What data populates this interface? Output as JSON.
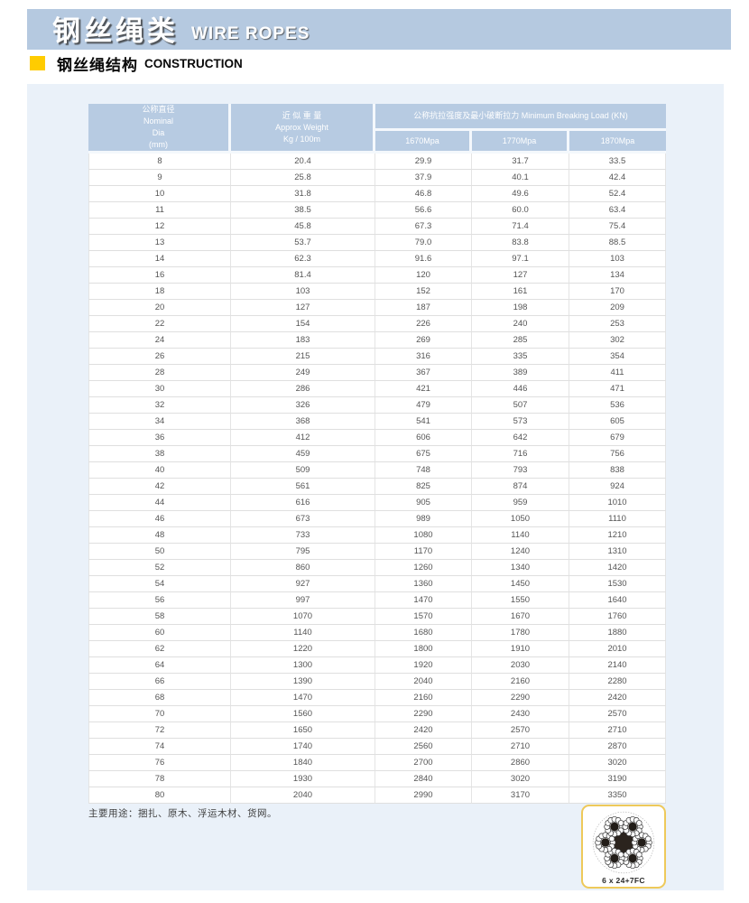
{
  "header": {
    "title_cn": "钢丝绳类",
    "title_en": "WIRE ROPES"
  },
  "section": {
    "title_cn": "钢丝绳结构",
    "title_en": "CONSTRUCTION"
  },
  "table": {
    "col_dia": {
      "cn": "公称直径",
      "en1": "Nominal",
      "en2": "Dia",
      "en3": "(mm)"
    },
    "col_weight": {
      "cn": "近 似 重 量",
      "en1": "Approx Weight",
      "en2": "Kg / 100m"
    },
    "col_group": "公称抗拉强度及最小破断拉力 Minimum Breaking Load (KN)",
    "subcols": [
      "1670Mpa",
      "1770Mpa",
      "1870Mpa"
    ],
    "rows": [
      [
        "8",
        "20.4",
        "29.9",
        "31.7",
        "33.5"
      ],
      [
        "9",
        "25.8",
        "37.9",
        "40.1",
        "42.4"
      ],
      [
        "10",
        "31.8",
        "46.8",
        "49.6",
        "52.4"
      ],
      [
        "11",
        "38.5",
        "56.6",
        "60.0",
        "63.4"
      ],
      [
        "12",
        "45.8",
        "67.3",
        "71.4",
        "75.4"
      ],
      [
        "13",
        "53.7",
        "79.0",
        "83.8",
        "88.5"
      ],
      [
        "14",
        "62.3",
        "91.6",
        "97.1",
        "103"
      ],
      [
        "16",
        "81.4",
        "120",
        "127",
        "134"
      ],
      [
        "18",
        "103",
        "152",
        "161",
        "170"
      ],
      [
        "20",
        "127",
        "187",
        "198",
        "209"
      ],
      [
        "22",
        "154",
        "226",
        "240",
        "253"
      ],
      [
        "24",
        "183",
        "269",
        "285",
        "302"
      ],
      [
        "26",
        "215",
        "316",
        "335",
        "354"
      ],
      [
        "28",
        "249",
        "367",
        "389",
        "411"
      ],
      [
        "30",
        "286",
        "421",
        "446",
        "471"
      ],
      [
        "32",
        "326",
        "479",
        "507",
        "536"
      ],
      [
        "34",
        "368",
        "541",
        "573",
        "605"
      ],
      [
        "36",
        "412",
        "606",
        "642",
        "679"
      ],
      [
        "38",
        "459",
        "675",
        "716",
        "756"
      ],
      [
        "40",
        "509",
        "748",
        "793",
        "838"
      ],
      [
        "42",
        "561",
        "825",
        "874",
        "924"
      ],
      [
        "44",
        "616",
        "905",
        "959",
        "1010"
      ],
      [
        "46",
        "673",
        "989",
        "1050",
        "1110"
      ],
      [
        "48",
        "733",
        "1080",
        "1140",
        "1210"
      ],
      [
        "50",
        "795",
        "1170",
        "1240",
        "1310"
      ],
      [
        "52",
        "860",
        "1260",
        "1340",
        "1420"
      ],
      [
        "54",
        "927",
        "1360",
        "1450",
        "1530"
      ],
      [
        "56",
        "997",
        "1470",
        "1550",
        "1640"
      ],
      [
        "58",
        "1070",
        "1570",
        "1670",
        "1760"
      ],
      [
        "60",
        "1140",
        "1680",
        "1780",
        "1880"
      ],
      [
        "62",
        "1220",
        "1800",
        "1910",
        "2010"
      ],
      [
        "64",
        "1300",
        "1920",
        "2030",
        "2140"
      ],
      [
        "66",
        "1390",
        "2040",
        "2160",
        "2280"
      ],
      [
        "68",
        "1470",
        "2160",
        "2290",
        "2420"
      ],
      [
        "70",
        "1560",
        "2290",
        "2430",
        "2570"
      ],
      [
        "72",
        "1650",
        "2420",
        "2570",
        "2710"
      ],
      [
        "74",
        "1740",
        "2560",
        "2710",
        "2870"
      ],
      [
        "76",
        "1840",
        "2700",
        "2860",
        "3020"
      ],
      [
        "78",
        "1930",
        "2840",
        "3020",
        "3190"
      ],
      [
        "80",
        "2040",
        "2990",
        "3170",
        "3350"
      ]
    ]
  },
  "footer": {
    "note": "主要用途：捆扎、原木、浮运木材、货网。",
    "rope_label": "6 x 24+7FC"
  },
  "colors": {
    "banner_blue": "#b5c9e0",
    "header_blue": "#b7cbe2",
    "content_bg": "#eaf1f9",
    "accent_yellow": "#ffcc00",
    "rope_box_border": "#eec95a",
    "cell_text": "#555555"
  }
}
